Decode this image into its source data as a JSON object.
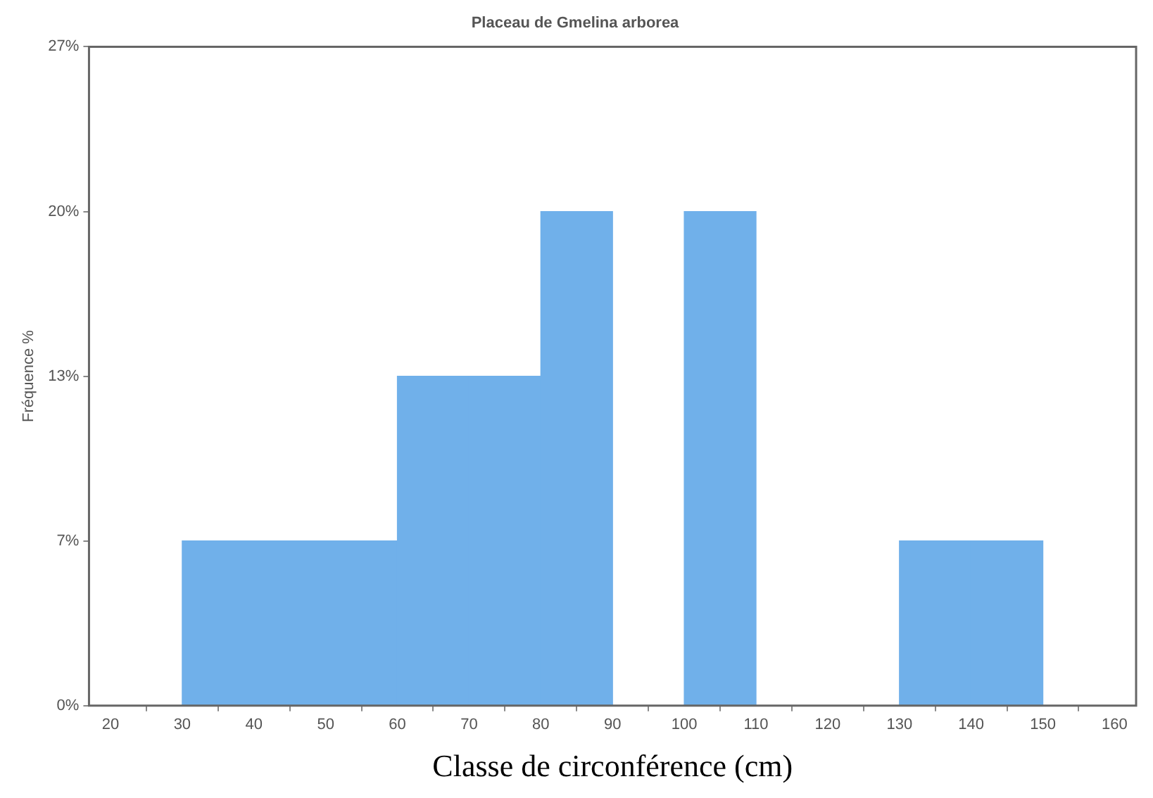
{
  "chart_data": {
    "type": "histogram",
    "title": "Placeau de Gmelina arborea",
    "xlabel": "Classe de circonférence (cm)",
    "ylabel": "Fréquence %",
    "bins": [
      20,
      30,
      40,
      50,
      60,
      70,
      80,
      90,
      100,
      110,
      120,
      130,
      140,
      150,
      160
    ],
    "values": [
      0,
      6.67,
      6.67,
      6.67,
      13.33,
      13.33,
      20,
      0,
      20,
      0,
      0,
      6.67,
      6.67,
      0
    ],
    "color": "#70b0ea",
    "xlim": [
      17,
      163
    ],
    "xticks": [
      20,
      30,
      40,
      50,
      60,
      70,
      80,
      90,
      100,
      110,
      120,
      130,
      140,
      150,
      160
    ],
    "ylim": [
      0,
      26.67
    ],
    "yticks": [
      {
        "value": 0,
        "label": "0%"
      },
      {
        "value": 6.67,
        "label": "7%"
      },
      {
        "value": 13.33,
        "label": "13%"
      },
      {
        "value": 20,
        "label": "20%"
      },
      {
        "value": 26.67,
        "label": "27%"
      }
    ],
    "grid": false,
    "legend": false
  }
}
